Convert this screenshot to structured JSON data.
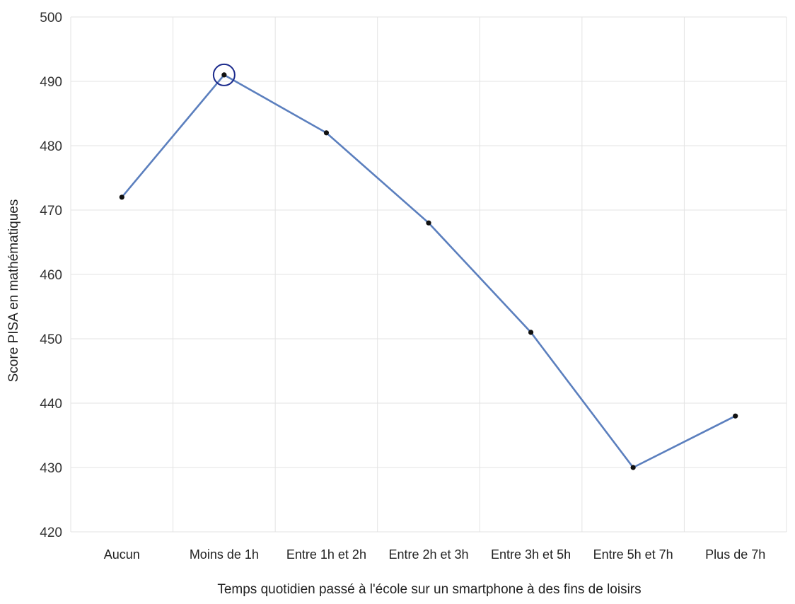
{
  "chart_data": {
    "type": "line",
    "categories": [
      "Aucun",
      "Moins de 1h",
      "Entre 1h et 2h",
      "Entre 2h et 3h",
      "Entre 3h et 5h",
      "Entre 5h et 7h",
      "Plus de 7h"
    ],
    "series": [
      {
        "values": [
          472,
          491,
          482,
          468,
          451,
          430,
          438
        ]
      }
    ],
    "highlighted_category": "Moins de 1h",
    "title": "",
    "xlabel": "Temps quotidien passé à l'école sur un smartphone à des fins de loisirs",
    "ylabel": "Score PISA en mathématiques",
    "ylim": [
      420,
      500
    ],
    "yticks": [
      420,
      430,
      440,
      450,
      460,
      470,
      480,
      490,
      500
    ],
    "grid": true,
    "legend": "none"
  },
  "colors": {
    "line": "#5b7fbe",
    "marker": "#111111",
    "highlight_ring": "#1b2a8c",
    "grid": "#e3e3e3"
  }
}
